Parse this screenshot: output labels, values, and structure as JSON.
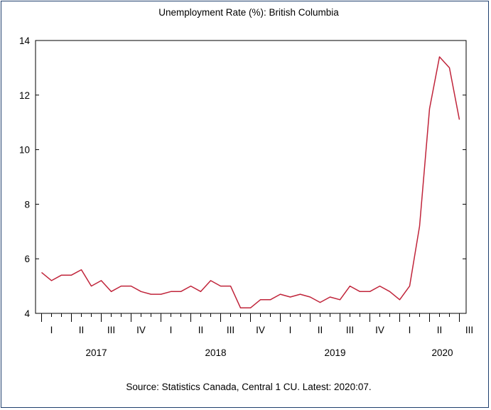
{
  "chart_data": {
    "type": "line",
    "title": "Unemployment Rate (%): British Columbia",
    "source": "Source: Statistics Canada, Central 1 CU. Latest: 2020:07.",
    "xlabel": "",
    "ylabel": "",
    "ylim": [
      4,
      14
    ],
    "yticks": [
      4,
      6,
      8,
      10,
      12,
      14
    ],
    "grid": false,
    "x_start": "2017-01",
    "x_end": "2020-07",
    "frequency": "monthly",
    "quarter_labels": [
      "I",
      "II",
      "III",
      "IV",
      "I",
      "II",
      "III",
      "IV",
      "I",
      "II",
      "III",
      "IV",
      "I",
      "II",
      "III"
    ],
    "year_labels": [
      "2017",
      "2018",
      "2019",
      "2020"
    ],
    "line_color": "#c0243a",
    "series": [
      {
        "values": [
          5.5,
          5.2,
          5.4,
          5.4,
          5.6,
          5.0,
          5.2,
          4.8,
          5.0,
          5.0,
          4.8,
          4.7,
          4.7,
          4.8,
          4.8,
          5.0,
          4.8,
          5.2,
          5.0,
          5.0,
          4.2,
          4.2,
          4.5,
          4.5,
          4.7,
          4.6,
          4.7,
          4.6,
          4.4,
          4.6,
          4.5,
          5.0,
          4.8,
          4.8,
          5.0,
          4.8,
          4.5,
          5.0,
          7.2,
          11.5,
          13.4,
          13.0,
          11.1
        ]
      }
    ]
  }
}
